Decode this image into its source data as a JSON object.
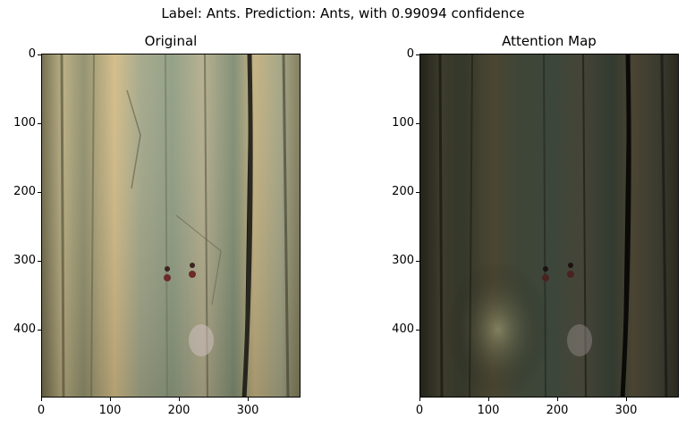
{
  "figure": {
    "suptitle": "Label: Ants. Prediction: Ants, with 0.99094 confidence"
  },
  "panels": [
    {
      "title": "Original",
      "image_content": "rock surface with two ants",
      "y_ticks": [
        "0",
        "100",
        "200",
        "300",
        "400"
      ],
      "x_ticks": [
        "0",
        "100",
        "200",
        "300"
      ]
    },
    {
      "title": "Attention Map",
      "image_content": "darkened rock surface attention overlay",
      "y_ticks": [
        "0",
        "100",
        "200",
        "300",
        "400"
      ],
      "x_ticks": [
        "0",
        "100",
        "200",
        "300"
      ]
    }
  ]
}
